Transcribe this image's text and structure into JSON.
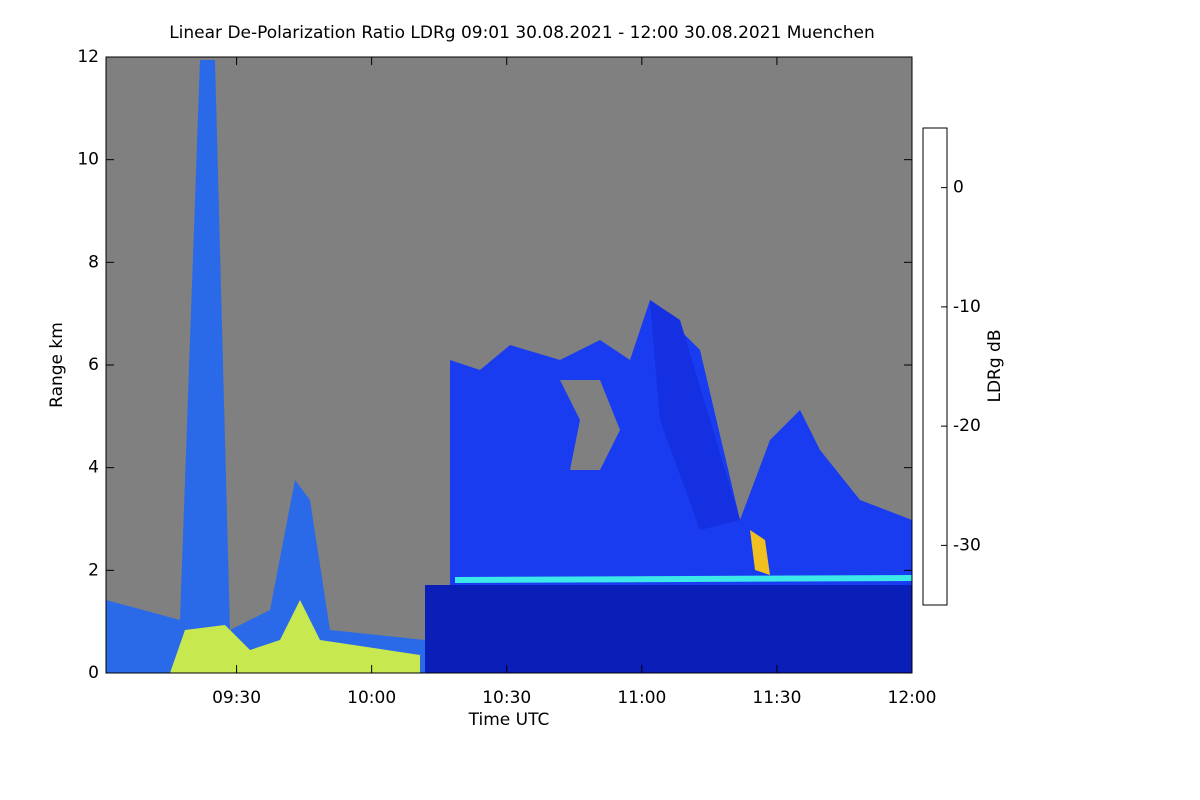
{
  "chart_data": {
    "type": "heatmap",
    "title": "Linear De-Polarization Ratio LDRg   09:01 30.08.2021 - 12:00 30.08.2021 Muenchen",
    "x_label": "Time UTC",
    "y_label": "Range km",
    "colorbar_label": "LDRg dB",
    "xlim": [
      9.0167,
      12.0
    ],
    "xticks": [
      {
        "value": 9.5,
        "label": "09:30"
      },
      {
        "value": 10.0,
        "label": "10:00"
      },
      {
        "value": 10.5,
        "label": "10:30"
      },
      {
        "value": 11.0,
        "label": "11:00"
      },
      {
        "value": 11.5,
        "label": "11:30"
      },
      {
        "value": 12.0,
        "label": "12:00"
      }
    ],
    "ylim": [
      0,
      12
    ],
    "yticks": [
      0,
      2,
      4,
      6,
      8,
      10,
      12
    ],
    "clim": [
      -35,
      5
    ],
    "cticks": [
      0,
      -10,
      -20,
      -30
    ],
    "colormap": [
      "#00007f",
      "#0000ff",
      "#0080ff",
      "#00ffff",
      "#80ff80",
      "#ffff00",
      "#ff8000",
      "#ff0000",
      "#7f0000"
    ]
  }
}
